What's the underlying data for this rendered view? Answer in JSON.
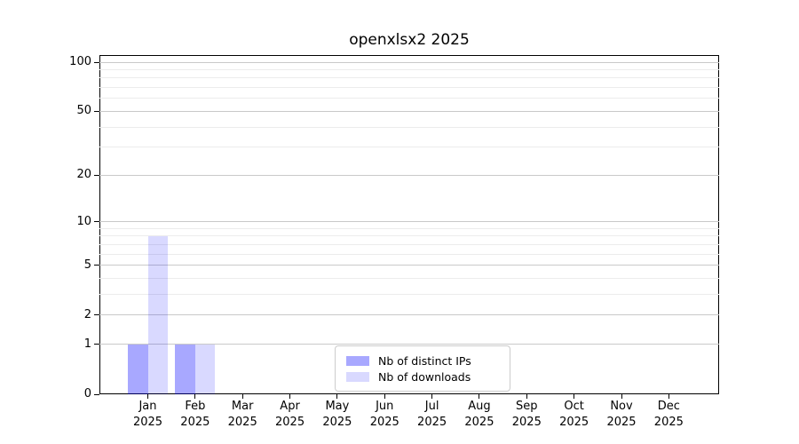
{
  "chart_data": {
    "type": "bar",
    "title": "openxlsx2 2025",
    "categories": [
      "Jan",
      "Feb",
      "Mar",
      "Apr",
      "May",
      "Jun",
      "Jul",
      "Aug",
      "Sep",
      "Oct",
      "Nov",
      "Dec"
    ],
    "x_year_label": "2025",
    "series": [
      {
        "name": "Nb of distinct IPs",
        "color": "#0000ff57",
        "values": [
          1,
          1,
          0,
          0,
          0,
          0,
          0,
          0,
          0,
          0,
          0,
          0
        ]
      },
      {
        "name": "Nb of downloads",
        "color": "#0000ff26",
        "values": [
          8,
          1,
          0,
          0,
          0,
          0,
          0,
          0,
          0,
          0,
          0,
          0
        ]
      }
    ],
    "xlabel": "",
    "ylabel": "",
    "y_scale": "log1p",
    "y_major_ticks": [
      0,
      1,
      2,
      5,
      10,
      20,
      50,
      100
    ],
    "y_minor_ticks": [
      3,
      4,
      6,
      7,
      8,
      9,
      30,
      40,
      60,
      70,
      80,
      90
    ],
    "ylim": [
      0,
      112
    ],
    "grid": "horizontal",
    "legend_position": "inside-bottom-center",
    "colors": {
      "background": "#ffffff",
      "axis": "#000000",
      "text": "#000000",
      "major_grid": "#c9c9c9",
      "minor_grid": "#ececec"
    }
  }
}
